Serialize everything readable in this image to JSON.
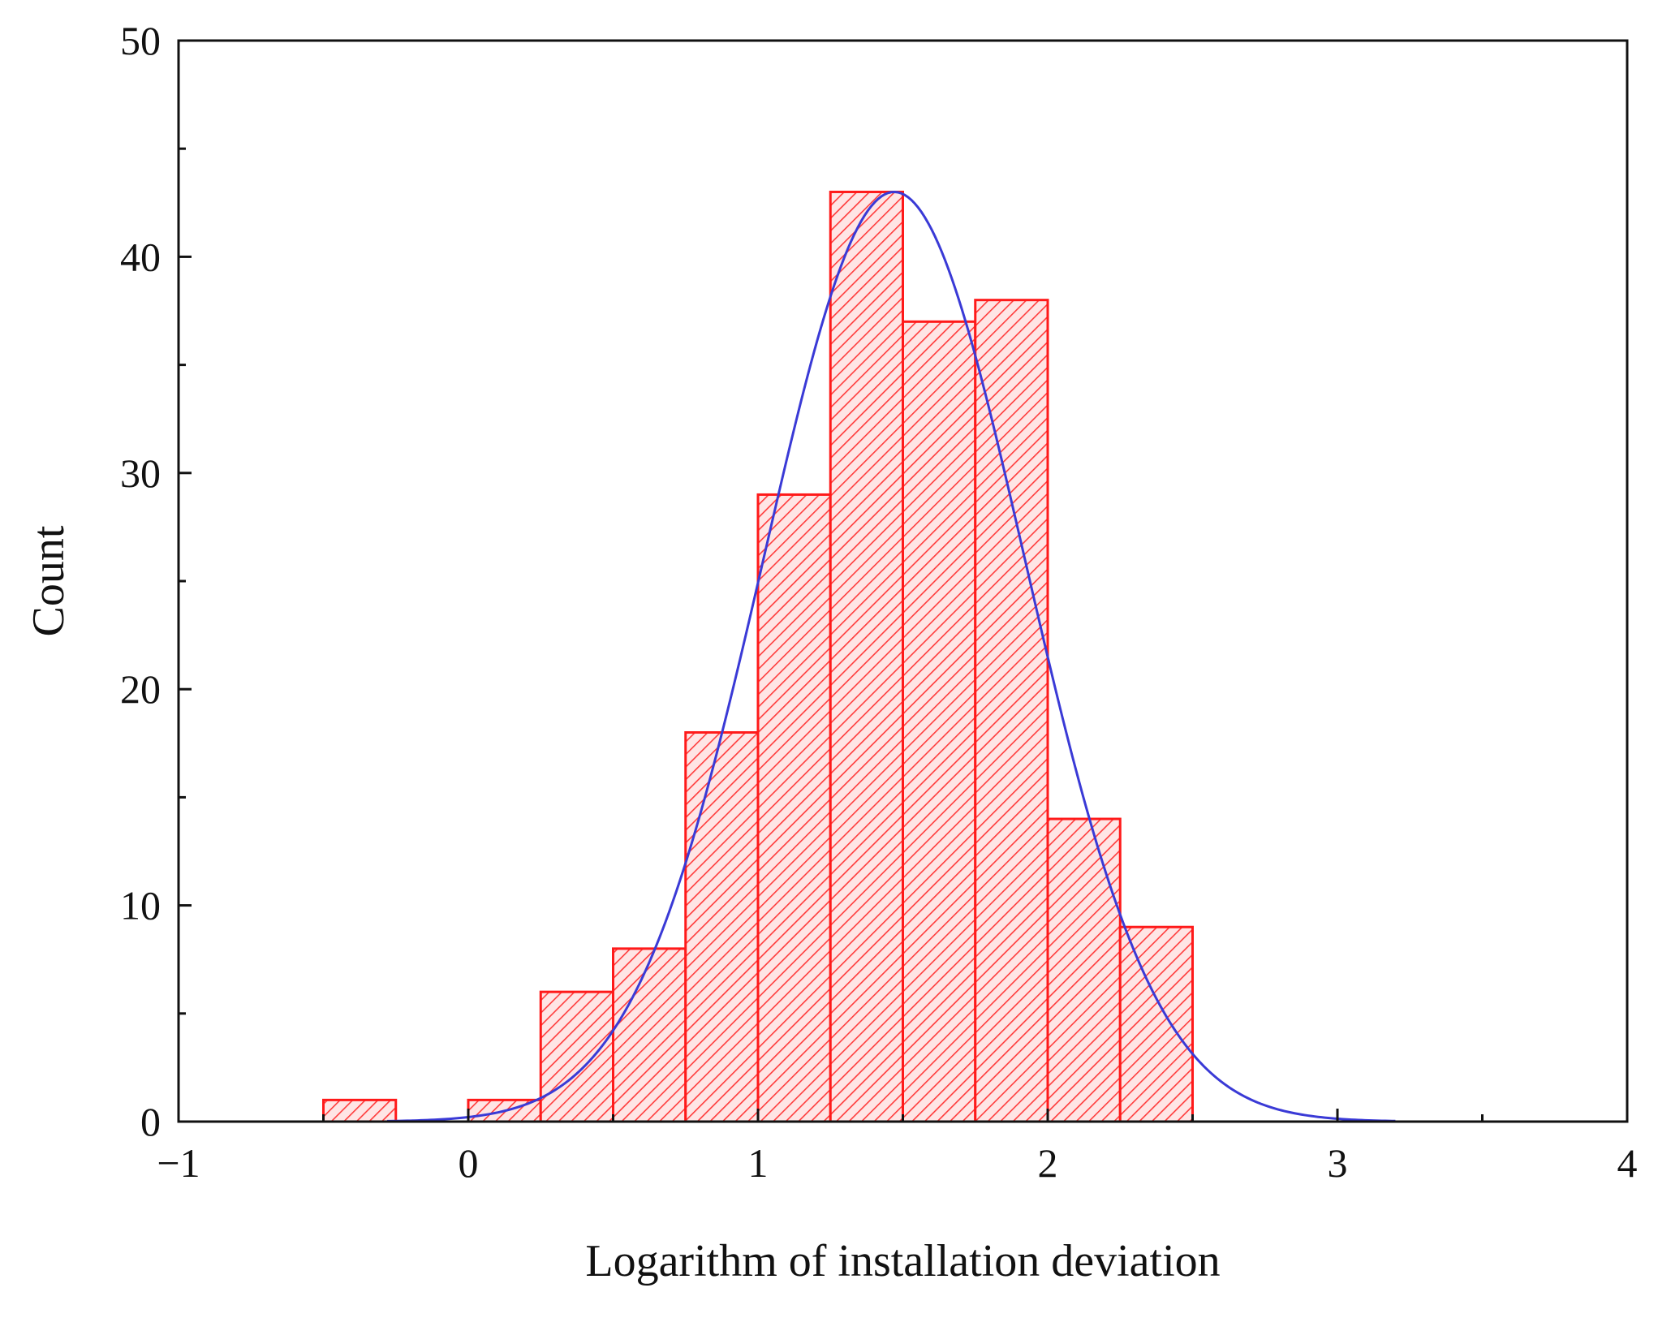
{
  "chart_data": {
    "type": "bar",
    "subtype": "histogram with normal fit curve",
    "title": "",
    "xlabel": "Logarithm of installation deviation",
    "ylabel": "Count",
    "xlim": [
      -1,
      4
    ],
    "ylim": [
      0,
      50
    ],
    "xticks": [
      -1,
      0,
      1,
      2,
      3,
      4
    ],
    "xtick_labels": [
      "−1",
      "0",
      "1",
      "2",
      "3",
      "4"
    ],
    "yticks": [
      0,
      10,
      20,
      30,
      40,
      50
    ],
    "ytick_labels": [
      "0",
      "10",
      "20",
      "30",
      "40",
      "50"
    ],
    "bin_width": 0.25,
    "bins": [
      {
        "start": -0.5,
        "end": -0.25,
        "count": 1
      },
      {
        "start": 0.0,
        "end": 0.25,
        "count": 1
      },
      {
        "start": 0.25,
        "end": 0.5,
        "count": 6
      },
      {
        "start": 0.5,
        "end": 0.75,
        "count": 8
      },
      {
        "start": 0.75,
        "end": 1.0,
        "count": 18
      },
      {
        "start": 1.0,
        "end": 1.25,
        "count": 29
      },
      {
        "start": 1.25,
        "end": 1.5,
        "count": 43
      },
      {
        "start": 1.5,
        "end": 1.75,
        "count": 37
      },
      {
        "start": 1.75,
        "end": 2.0,
        "count": 38
      },
      {
        "start": 2.0,
        "end": 2.25,
        "count": 14
      },
      {
        "start": 2.25,
        "end": 2.5,
        "count": 9
      }
    ],
    "fit_curve": {
      "type": "normal",
      "peak_x": 1.47,
      "peak_count": 43,
      "sigma": 0.45,
      "x_range": [
        -0.28,
        3.2
      ]
    },
    "grid": false,
    "legend": "none",
    "colors": {
      "bar_edge": "#ff1a1a",
      "bar_hatch": "#ff3b3b",
      "bar_fill": "#ffe5e5",
      "fit_line": "#3a3ad6",
      "axis": "#111111"
    }
  }
}
